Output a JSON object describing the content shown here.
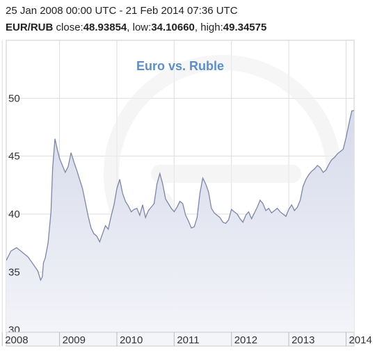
{
  "header": {
    "range": "25 Jan 2008 00:00 UTC - 21 Feb 2014 07:36 UTC",
    "pair": "EUR/RUB",
    "close_label": "close:",
    "close_value": "48.93854",
    "low_label": "low:",
    "low_value": "34.10660",
    "high_label": "high:",
    "high_value": "49.34575",
    "sep": ", "
  },
  "colors": {
    "line": "#7d86a6",
    "fill": "#dcdfec",
    "title": "#5b8fc9",
    "grid": "#dddddd",
    "axis_text": "#333333"
  },
  "chart_data": {
    "type": "area",
    "title": "Euro vs. Ruble",
    "xlabel": "",
    "ylabel": "",
    "y_ticks": [
      "30",
      "35",
      "40",
      "45",
      "50"
    ],
    "x_ticks": [
      "2008",
      "2009",
      "2010",
      "2011",
      "2012",
      "2013",
      "2014"
    ],
    "ylim": [
      29.8,
      55
    ],
    "xlim": [
      2008.07,
      2014.14
    ],
    "grid": true,
    "series": [
      {
        "x": [
          2008.07,
          2008.15,
          2008.25,
          2008.35,
          2008.45,
          2008.55,
          2008.62,
          2008.67,
          2008.7,
          2008.72,
          2008.75,
          2008.8,
          2008.85,
          2008.88,
          2008.92,
          2008.96,
          2009.0,
          2009.05,
          2009.1,
          2009.15,
          2009.2,
          2009.25,
          2009.3,
          2009.35,
          2009.4,
          2009.45,
          2009.5,
          2009.55,
          2009.6,
          2009.65,
          2009.7,
          2009.75,
          2009.8,
          2009.85,
          2009.9,
          2009.95,
          2010.0,
          2010.05,
          2010.1,
          2010.15,
          2010.2,
          2010.25,
          2010.3,
          2010.35,
          2010.4,
          2010.45,
          2010.5,
          2010.55,
          2010.6,
          2010.65,
          2010.7,
          2010.75,
          2010.8,
          2010.85,
          2010.9,
          2010.95,
          2011.0,
          2011.05,
          2011.1,
          2011.15,
          2011.2,
          2011.25,
          2011.3,
          2011.35,
          2011.4,
          2011.45,
          2011.5,
          2011.55,
          2011.6,
          2011.65,
          2011.7,
          2011.75,
          2011.8,
          2011.85,
          2011.9,
          2011.95,
          2012.0,
          2012.05,
          2012.1,
          2012.15,
          2012.2,
          2012.25,
          2012.3,
          2012.35,
          2012.4,
          2012.45,
          2012.5,
          2012.55,
          2012.6,
          2012.65,
          2012.7,
          2012.75,
          2012.8,
          2012.85,
          2012.9,
          2012.95,
          2013.0,
          2013.05,
          2013.1,
          2013.15,
          2013.2,
          2013.25,
          2013.3,
          2013.35,
          2013.4,
          2013.45,
          2013.5,
          2013.55,
          2013.6,
          2013.65,
          2013.7,
          2013.75,
          2013.8,
          2013.85,
          2013.9,
          2013.95,
          2014.0,
          2014.05,
          2014.1,
          2014.14
        ],
        "y": [
          36.0,
          36.8,
          37.1,
          36.7,
          36.3,
          35.6,
          35.1,
          34.3,
          34.6,
          35.8,
          36.2,
          37.5,
          40.2,
          44.0,
          46.5,
          45.6,
          44.8,
          44.2,
          43.6,
          44.1,
          45.3,
          44.5,
          43.8,
          43.0,
          42.2,
          41.0,
          39.8,
          38.8,
          38.3,
          38.1,
          37.6,
          38.3,
          39.0,
          38.7,
          39.8,
          40.8,
          42.2,
          43.0,
          41.8,
          41.1,
          40.7,
          40.2,
          40.4,
          40.5,
          39.9,
          40.8,
          39.7,
          40.3,
          40.6,
          40.9,
          42.6,
          43.5,
          42.6,
          41.3,
          40.9,
          40.5,
          40.2,
          40.6,
          41.1,
          40.9,
          39.9,
          39.4,
          38.8,
          38.9,
          39.7,
          41.8,
          43.1,
          42.6,
          41.9,
          40.5,
          40.1,
          39.9,
          39.7,
          39.3,
          39.2,
          39.5,
          40.4,
          40.2,
          40.0,
          39.6,
          39.3,
          39.9,
          40.2,
          39.6,
          40.1,
          40.6,
          41.2,
          40.9,
          40.3,
          40.5,
          40.1,
          40.3,
          40.5,
          40.2,
          40.0,
          39.8,
          40.4,
          40.8,
          40.3,
          40.6,
          41.2,
          42.4,
          43.0,
          43.4,
          43.7,
          43.9,
          44.2,
          44.0,
          43.6,
          43.8,
          44.3,
          44.7,
          44.9,
          45.2,
          45.4,
          45.6,
          46.6,
          47.8,
          48.9,
          48.94
        ]
      }
    ]
  }
}
